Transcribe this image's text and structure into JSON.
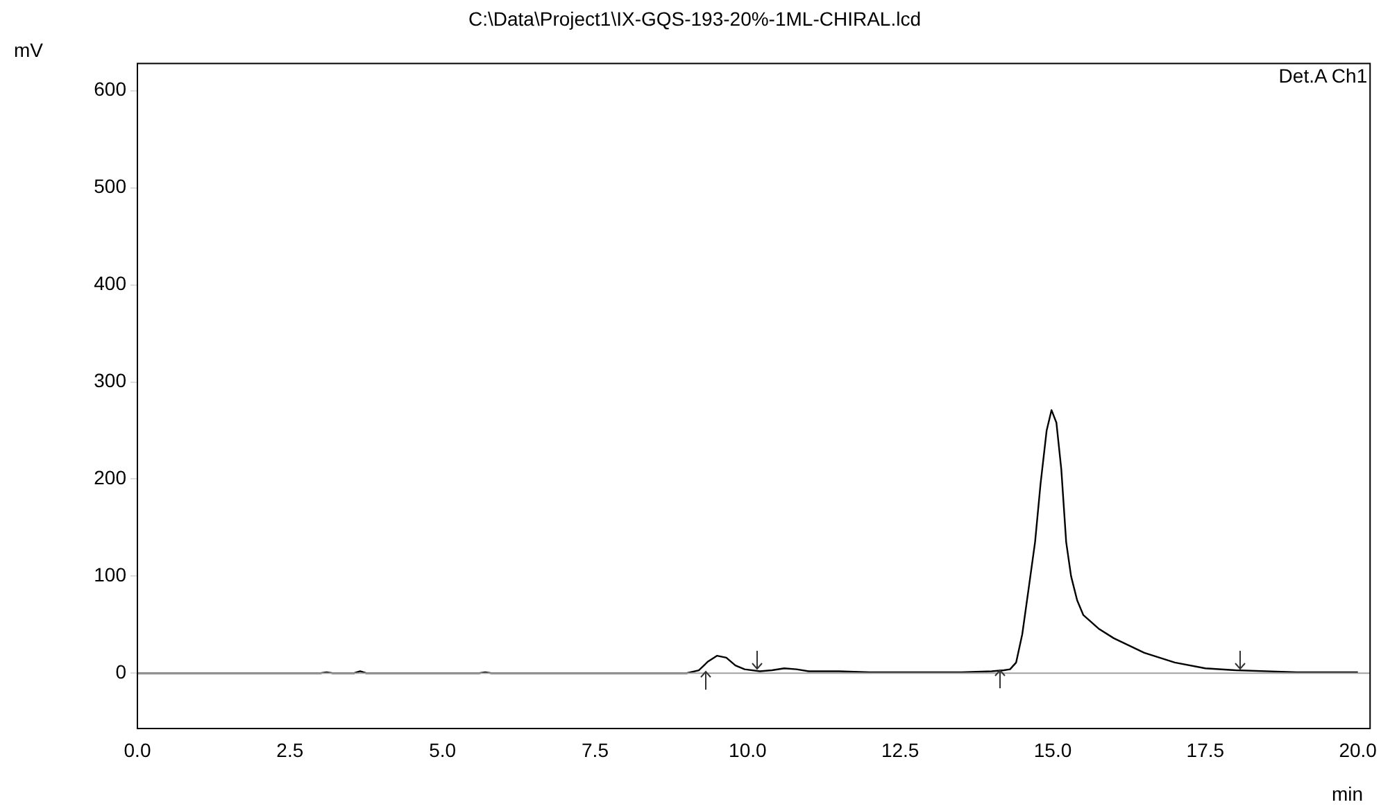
{
  "chart_data": {
    "type": "line",
    "title": "C:\\Data\\Project1\\IX-GQS-193-20%-1ML-CHIRAL.lcd",
    "xlabel": "min",
    "ylabel": "mV",
    "annotations": [
      "Det.A Ch1"
    ],
    "xlim": [
      0,
      20.2
    ],
    "xticks": [
      {
        "value": 0,
        "label": "0.0"
      },
      2.5,
      {
        "value": 5,
        "label": "5.0"
      },
      7.5,
      {
        "value": 10,
        "label": "10.0"
      },
      12.5,
      {
        "value": 15,
        "label": "15.0"
      },
      17.5,
      {
        "value": 20,
        "label": "20.0"
      }
    ],
    "ylim": [
      -57,
      628
    ],
    "yticks": [
      0,
      100,
      200,
      300,
      400,
      500,
      600
    ],
    "grid": false,
    "legend": false,
    "marker": "none",
    "line_style": "solid",
    "ref_lines": [
      {
        "axis": "y",
        "value": 0,
        "color": "#a0a0a0"
      }
    ],
    "series": [
      {
        "color": "#000000",
        "x": [
          0,
          3.0,
          3.1,
          3.2,
          3.55,
          3.65,
          3.75,
          5.6,
          5.7,
          5.8,
          9.0,
          9.2,
          9.35,
          9.5,
          9.65,
          9.8,
          9.95,
          10.2,
          10.4,
          10.6,
          10.8,
          11.0,
          11.5,
          12.0,
          13.5,
          14.0,
          14.2,
          14.3,
          14.4,
          14.5,
          14.6,
          14.71,
          14.8,
          14.9,
          14.98,
          15.06,
          15.14,
          15.22,
          15.3,
          15.4,
          15.5,
          15.75,
          16.0,
          16.5,
          17.0,
          17.5,
          18.0,
          19.0,
          20.0
        ],
        "values": [
          0,
          0,
          1,
          0,
          0,
          2,
          0,
          0,
          1,
          0,
          0,
          3,
          12,
          18,
          16,
          8,
          4,
          2,
          3,
          5,
          4,
          2,
          2,
          1,
          1,
          2,
          3,
          4,
          11,
          40,
          85,
          135,
          195,
          250,
          271,
          258,
          210,
          135,
          100,
          75,
          60,
          46,
          36,
          21,
          11,
          5,
          3,
          1,
          1
        ]
      }
    ]
  }
}
